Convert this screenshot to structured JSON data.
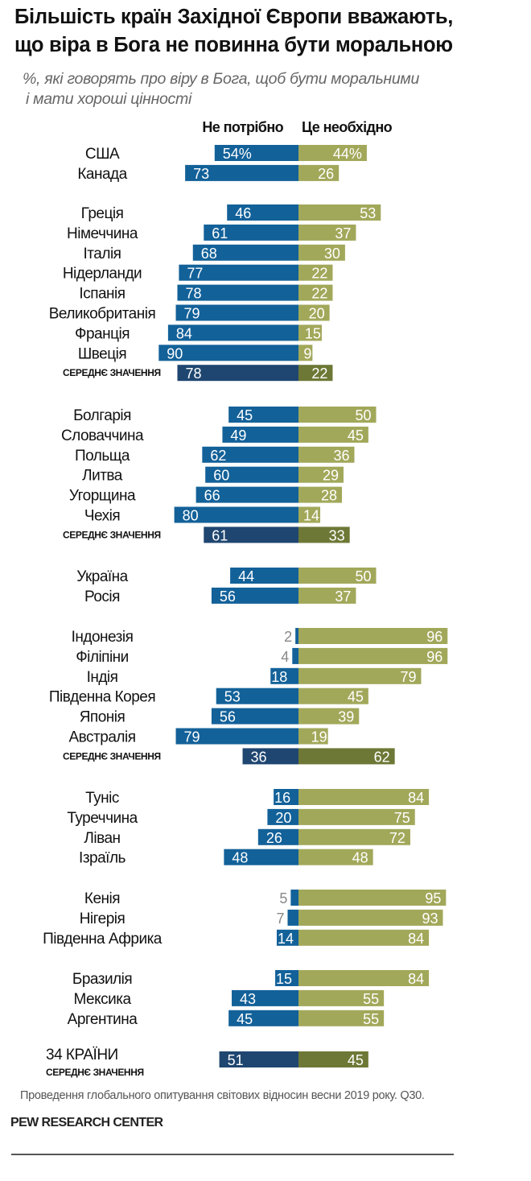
{
  "title_lines": [
    "Більшість країн Західної Європи вважають,",
    "що віра в Бога не повинна бути моральною"
  ],
  "subtitle_lines": [
    "%, які говорять про віру в Бога, щоб бути моральними",
    "і мати хороші цінності"
  ],
  "footer": {
    "note": "Проведення глобального опитування світових відносин весни 2019 року. Q30.",
    "brand": "PEW RESEARCH CENTER"
  },
  "chart_data": {
    "type": "bar",
    "orientation": "horizontal-diverging",
    "legend_position": "top",
    "series": [
      {
        "name": "Не потрібно",
        "color": "#136199",
        "avg_color": "#1f4670"
      },
      {
        "name": "Це необхідно",
        "color": "#a2a85a",
        "avg_color": "#6e7836"
      }
    ],
    "groups": [
      {
        "rows": [
          {
            "label": "США",
            "values": [
              54,
              44
            ],
            "suffix": "%"
          },
          {
            "label": "Канада",
            "values": [
              73,
              26
            ]
          }
        ]
      },
      {
        "rows": [
          {
            "label": "Греція",
            "values": [
              46,
              53
            ]
          },
          {
            "label": "Німеччина",
            "values": [
              61,
              37
            ]
          },
          {
            "label": "Італія",
            "values": [
              68,
              30
            ]
          },
          {
            "label": "Нідерланди",
            "values": [
              77,
              22
            ]
          },
          {
            "label": "Іспанія",
            "values": [
              78,
              22
            ]
          },
          {
            "label": "Великобританія",
            "values": [
              79,
              20
            ]
          },
          {
            "label": "Франція",
            "values": [
              84,
              15
            ]
          },
          {
            "label": "Швеція",
            "values": [
              90,
              9
            ]
          },
          {
            "label": "СЕРЕДНЄ ЗНАЧЕННЯ",
            "values": [
              78,
              22
            ],
            "median": true
          }
        ]
      },
      {
        "rows": [
          {
            "label": "Болгарія",
            "values": [
              45,
              50
            ]
          },
          {
            "label": "Словаччина",
            "values": [
              49,
              45
            ]
          },
          {
            "label": "Польща",
            "values": [
              62,
              36
            ]
          },
          {
            "label": "Литва",
            "values": [
              60,
              29
            ]
          },
          {
            "label": "Угорщина",
            "values": [
              66,
              28
            ]
          },
          {
            "label": "Чехія",
            "values": [
              80,
              14
            ]
          },
          {
            "label": "СЕРЕДНЄ ЗНАЧЕННЯ",
            "values": [
              61,
              33
            ],
            "median": true
          }
        ]
      },
      {
        "rows": [
          {
            "label": "Україна",
            "values": [
              44,
              50
            ]
          },
          {
            "label": "Росія",
            "values": [
              56,
              37
            ]
          }
        ]
      },
      {
        "rows": [
          {
            "label": "Індонезія",
            "values": [
              2,
              96
            ]
          },
          {
            "label": "Філіпіни",
            "values": [
              4,
              96
            ]
          },
          {
            "label": "Індія",
            "values": [
              18,
              79
            ]
          },
          {
            "label": "Південна Корея",
            "values": [
              53,
              45
            ]
          },
          {
            "label": "Японія",
            "values": [
              56,
              39
            ]
          },
          {
            "label": "Австралія",
            "values": [
              79,
              19
            ]
          },
          {
            "label": "СЕРЕДНЄ ЗНАЧЕННЯ",
            "values": [
              36,
              62
            ],
            "median": true
          }
        ]
      },
      {
        "rows": [
          {
            "label": "Туніс",
            "values": [
              16,
              84
            ]
          },
          {
            "label": "Туреччина",
            "values": [
              20,
              75
            ]
          },
          {
            "label": "Ліван",
            "values": [
              26,
              72
            ]
          },
          {
            "label": "Ізраїль",
            "values": [
              48,
              48
            ]
          }
        ]
      },
      {
        "rows": [
          {
            "label": "Кенія",
            "values": [
              5,
              95
            ]
          },
          {
            "label": "Нігерія",
            "values": [
              7,
              93
            ]
          },
          {
            "label": "Південна Африка",
            "values": [
              14,
              84
            ]
          }
        ]
      },
      {
        "rows": [
          {
            "label": "Бразилія",
            "values": [
              15,
              84
            ]
          },
          {
            "label": "Мексика",
            "values": [
              43,
              55
            ]
          },
          {
            "label": "Аргентина",
            "values": [
              45,
              55
            ]
          }
        ]
      },
      {
        "rows": [
          {
            "label": "34 КРАЇНИ",
            "sublabel": "СЕРЕДНЄ ЗНАЧЕННЯ",
            "values": [
              51,
              45
            ],
            "median": true,
            "overall": true
          }
        ]
      }
    ],
    "xlim": [
      0,
      100
    ]
  }
}
